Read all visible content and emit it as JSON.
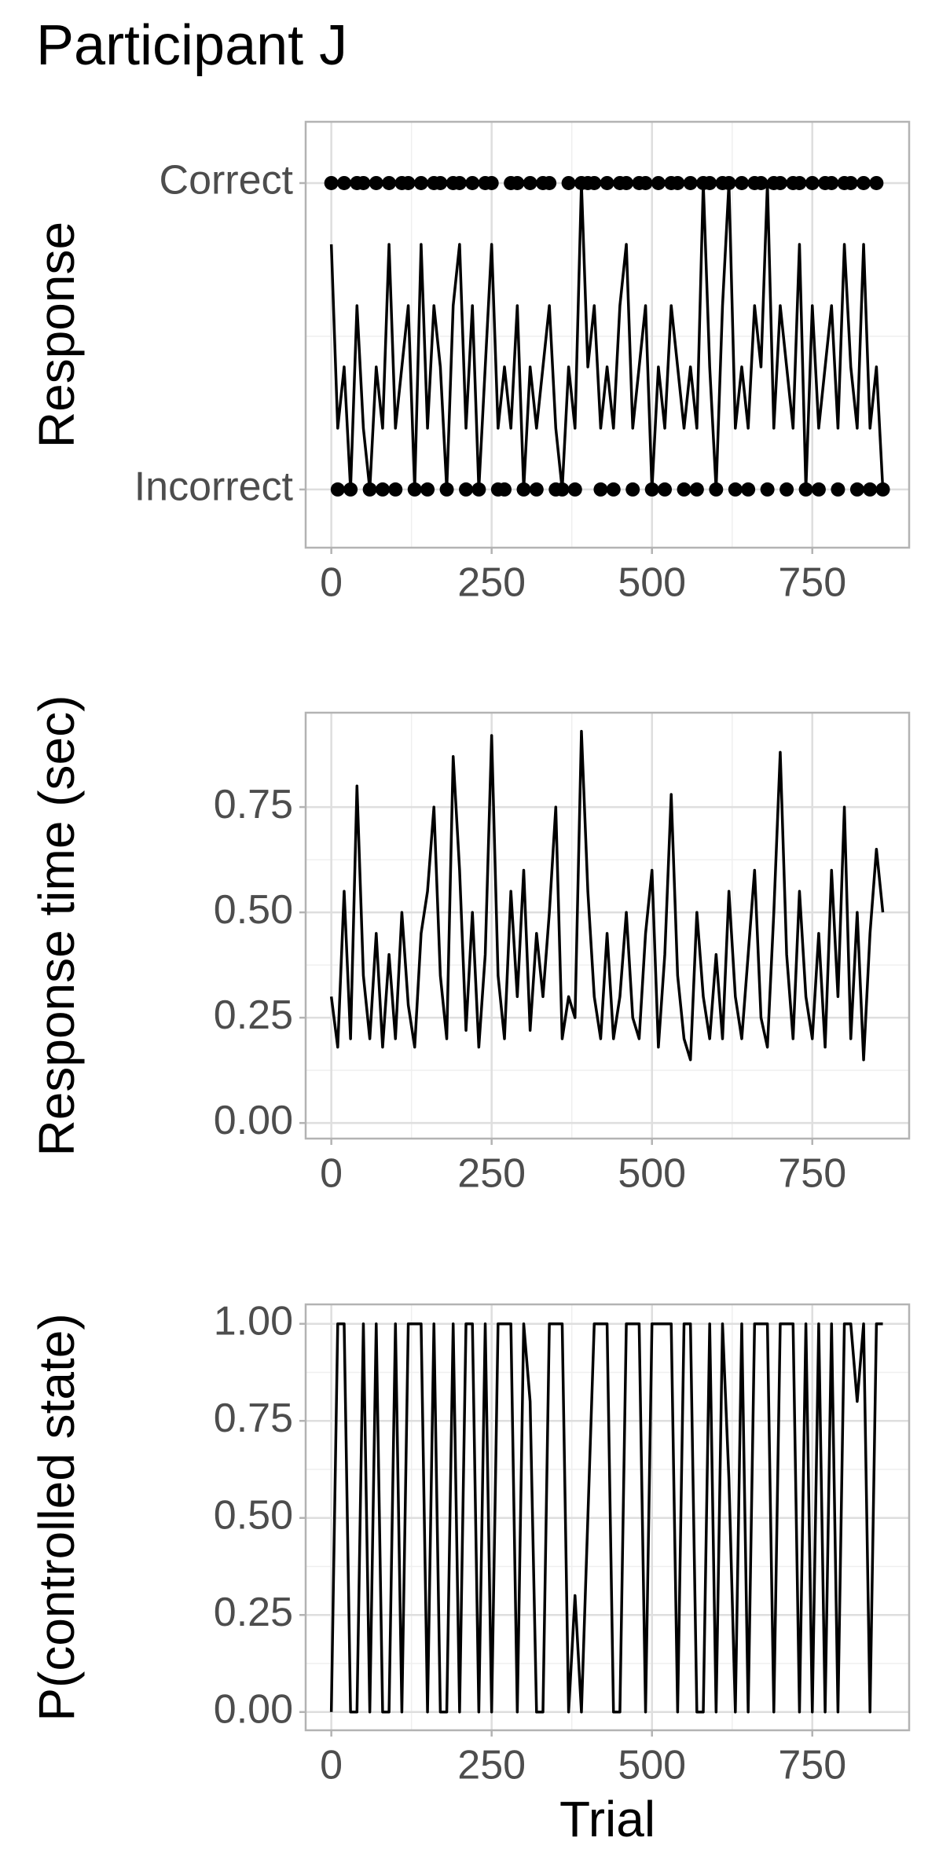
{
  "title": "Participant J",
  "chart_data": [
    {
      "type": "line",
      "ylabel": "Response",
      "x": [
        0,
        10,
        20,
        30,
        40,
        50,
        60,
        70,
        80,
        90,
        100,
        110,
        120,
        130,
        140,
        150,
        160,
        170,
        180,
        190,
        200,
        210,
        220,
        230,
        240,
        250,
        260,
        270,
        280,
        290,
        300,
        310,
        320,
        330,
        340,
        350,
        360,
        370,
        380,
        390,
        400,
        410,
        420,
        430,
        440,
        450,
        460,
        470,
        480,
        490,
        500,
        510,
        520,
        530,
        540,
        550,
        560,
        570,
        580,
        590,
        600,
        610,
        620,
        630,
        640,
        650,
        660,
        670,
        680,
        690,
        700,
        710,
        720,
        730,
        740,
        750,
        760,
        770,
        780,
        790,
        800,
        810,
        820,
        830,
        840,
        850,
        860
      ],
      "series": [
        {
          "style": "points",
          "color": "#000000",
          "values": [
            1,
            0,
            1,
            0,
            1,
            1,
            0,
            1,
            0,
            1,
            0,
            1,
            1,
            0,
            1,
            0,
            1,
            1,
            0,
            1,
            1,
            0,
            1,
            0,
            1,
            1,
            0,
            0,
            1,
            1,
            0,
            1,
            0,
            1,
            1,
            0,
            0,
            1,
            0,
            1,
            1,
            1,
            0,
            1,
            0,
            1,
            1,
            0,
            1,
            1,
            0,
            1,
            0,
            1,
            1,
            0,
            1,
            0,
            1,
            1,
            0,
            1,
            1,
            0,
            1,
            0,
            1,
            1,
            0,
            1,
            1,
            0,
            1,
            1,
            0,
            1,
            0,
            1,
            1,
            0,
            1,
            1,
            0,
            1,
            0,
            1,
            0
          ]
        },
        {
          "style": "line",
          "color": "#000000",
          "values": [
            0.8,
            0.2,
            0.4,
            0,
            0.6,
            0.2,
            0,
            0.4,
            0.2,
            0.8,
            0.2,
            0.4,
            0.6,
            0,
            0.8,
            0.2,
            0.6,
            0.4,
            0,
            0.6,
            0.8,
            0.2,
            0.6,
            0,
            0.4,
            0.8,
            0.2,
            0.4,
            0.2,
            0.6,
            0,
            0.4,
            0.2,
            0.4,
            0.6,
            0.2,
            0,
            0.4,
            0.2,
            1,
            0.4,
            0.6,
            0.2,
            0.4,
            0.2,
            0.6,
            0.8,
            0.2,
            0.4,
            0.6,
            0,
            0.4,
            0.2,
            0.6,
            0.4,
            0.2,
            0.4,
            0.2,
            1,
            0.4,
            0,
            0.6,
            1,
            0.2,
            0.4,
            0.2,
            0.6,
            0.4,
            1,
            0.2,
            0.6,
            0.4,
            0.2,
            0.8,
            0,
            0.6,
            0.2,
            0.4,
            0.6,
            0.2,
            0.8,
            0.4,
            0.2,
            0.8,
            0.2,
            0.4,
            0
          ]
        }
      ],
      "xlim": [
        -40,
        901
      ],
      "xticks": [
        0,
        250,
        500,
        750
      ],
      "ylim": [
        -0.19,
        1.2
      ],
      "yticks": [
        {
          "value": 0,
          "label": "Incorrect"
        },
        {
          "value": 1,
          "label": "Correct"
        }
      ],
      "grid": true
    },
    {
      "type": "line",
      "ylabel": "Response time (sec)",
      "x": [
        0,
        10,
        20,
        30,
        40,
        50,
        60,
        70,
        80,
        90,
        100,
        110,
        120,
        130,
        140,
        150,
        160,
        170,
        180,
        190,
        200,
        210,
        220,
        230,
        240,
        250,
        260,
        270,
        280,
        290,
        300,
        310,
        320,
        330,
        340,
        350,
        360,
        370,
        380,
        390,
        400,
        410,
        420,
        430,
        440,
        450,
        460,
        470,
        480,
        490,
        500,
        510,
        520,
        530,
        540,
        550,
        560,
        570,
        580,
        590,
        600,
        610,
        620,
        630,
        640,
        650,
        660,
        670,
        680,
        690,
        700,
        710,
        720,
        730,
        740,
        750,
        760,
        770,
        780,
        790,
        800,
        810,
        820,
        830,
        840,
        850,
        860
      ],
      "series": [
        {
          "style": "line",
          "color": "#000000",
          "values": [
            0.3,
            0.18,
            0.55,
            0.2,
            0.8,
            0.35,
            0.2,
            0.45,
            0.18,
            0.4,
            0.2,
            0.5,
            0.28,
            0.18,
            0.45,
            0.55,
            0.75,
            0.35,
            0.2,
            0.87,
            0.6,
            0.22,
            0.5,
            0.18,
            0.4,
            0.92,
            0.35,
            0.2,
            0.55,
            0.3,
            0.6,
            0.22,
            0.45,
            0.3,
            0.5,
            0.75,
            0.2,
            0.3,
            0.25,
            0.93,
            0.55,
            0.3,
            0.2,
            0.45,
            0.2,
            0.3,
            0.5,
            0.25,
            0.2,
            0.45,
            0.6,
            0.18,
            0.4,
            0.78,
            0.35,
            0.2,
            0.15,
            0.5,
            0.3,
            0.2,
            0.4,
            0.2,
            0.55,
            0.3,
            0.2,
            0.4,
            0.6,
            0.25,
            0.18,
            0.5,
            0.88,
            0.4,
            0.2,
            0.55,
            0.3,
            0.2,
            0.45,
            0.18,
            0.6,
            0.3,
            0.75,
            0.2,
            0.5,
            0.15,
            0.45,
            0.65,
            0.5
          ]
        }
      ],
      "xlim": [
        -40,
        901
      ],
      "xticks": [
        0,
        250,
        500,
        750
      ],
      "ylim": [
        -0.037,
        0.974
      ],
      "yticks": [
        {
          "value": 0,
          "label": "0.00"
        },
        {
          "value": 0.25,
          "label": "0.25"
        },
        {
          "value": 0.5,
          "label": "0.50"
        },
        {
          "value": 0.75,
          "label": "0.75"
        }
      ],
      "grid": true
    },
    {
      "type": "line",
      "ylabel": "P(controlled state)",
      "xlabel": "Trial",
      "x": [
        0,
        10,
        20,
        30,
        40,
        50,
        60,
        70,
        80,
        90,
        100,
        110,
        120,
        130,
        140,
        150,
        160,
        170,
        180,
        190,
        200,
        210,
        220,
        230,
        240,
        250,
        260,
        270,
        280,
        290,
        300,
        310,
        320,
        330,
        340,
        350,
        360,
        370,
        380,
        390,
        400,
        410,
        420,
        430,
        440,
        450,
        460,
        470,
        480,
        490,
        500,
        510,
        520,
        530,
        540,
        550,
        560,
        570,
        580,
        590,
        600,
        610,
        620,
        630,
        640,
        650,
        660,
        670,
        680,
        690,
        700,
        710,
        720,
        730,
        740,
        750,
        760,
        770,
        780,
        790,
        800,
        810,
        820,
        830,
        840,
        850,
        860
      ],
      "series": [
        {
          "style": "line",
          "color": "#000000",
          "values": [
            0,
            1,
            1,
            0,
            0,
            1,
            0,
            1,
            0,
            0,
            1,
            0,
            1,
            1,
            1,
            0,
            1,
            0,
            0,
            1,
            0,
            1,
            1,
            0,
            1,
            0,
            1,
            1,
            1,
            0,
            1,
            0.8,
            0,
            0,
            1,
            1,
            1,
            0,
            0.3,
            0,
            0.5,
            1,
            1,
            1,
            0,
            0,
            1,
            1,
            1,
            0,
            1,
            1,
            1,
            1,
            0,
            1,
            1,
            0,
            0,
            1,
            0,
            1,
            0.6,
            0,
            1,
            0,
            1,
            1,
            1,
            0,
            1,
            1,
            1,
            0,
            1,
            0,
            1,
            0,
            1,
            0,
            1,
            1,
            0.8,
            1,
            0,
            1,
            1
          ]
        }
      ],
      "xlim": [
        -40,
        901
      ],
      "xticks": [
        0,
        250,
        500,
        750
      ],
      "ylim": [
        -0.047,
        1.05
      ],
      "yticks": [
        {
          "value": 0,
          "label": "0.00"
        },
        {
          "value": 0.25,
          "label": "0.25"
        },
        {
          "value": 0.5,
          "label": "0.50"
        },
        {
          "value": 0.75,
          "label": "0.75"
        },
        {
          "value": 1,
          "label": "1.00"
        }
      ],
      "grid": true
    }
  ]
}
